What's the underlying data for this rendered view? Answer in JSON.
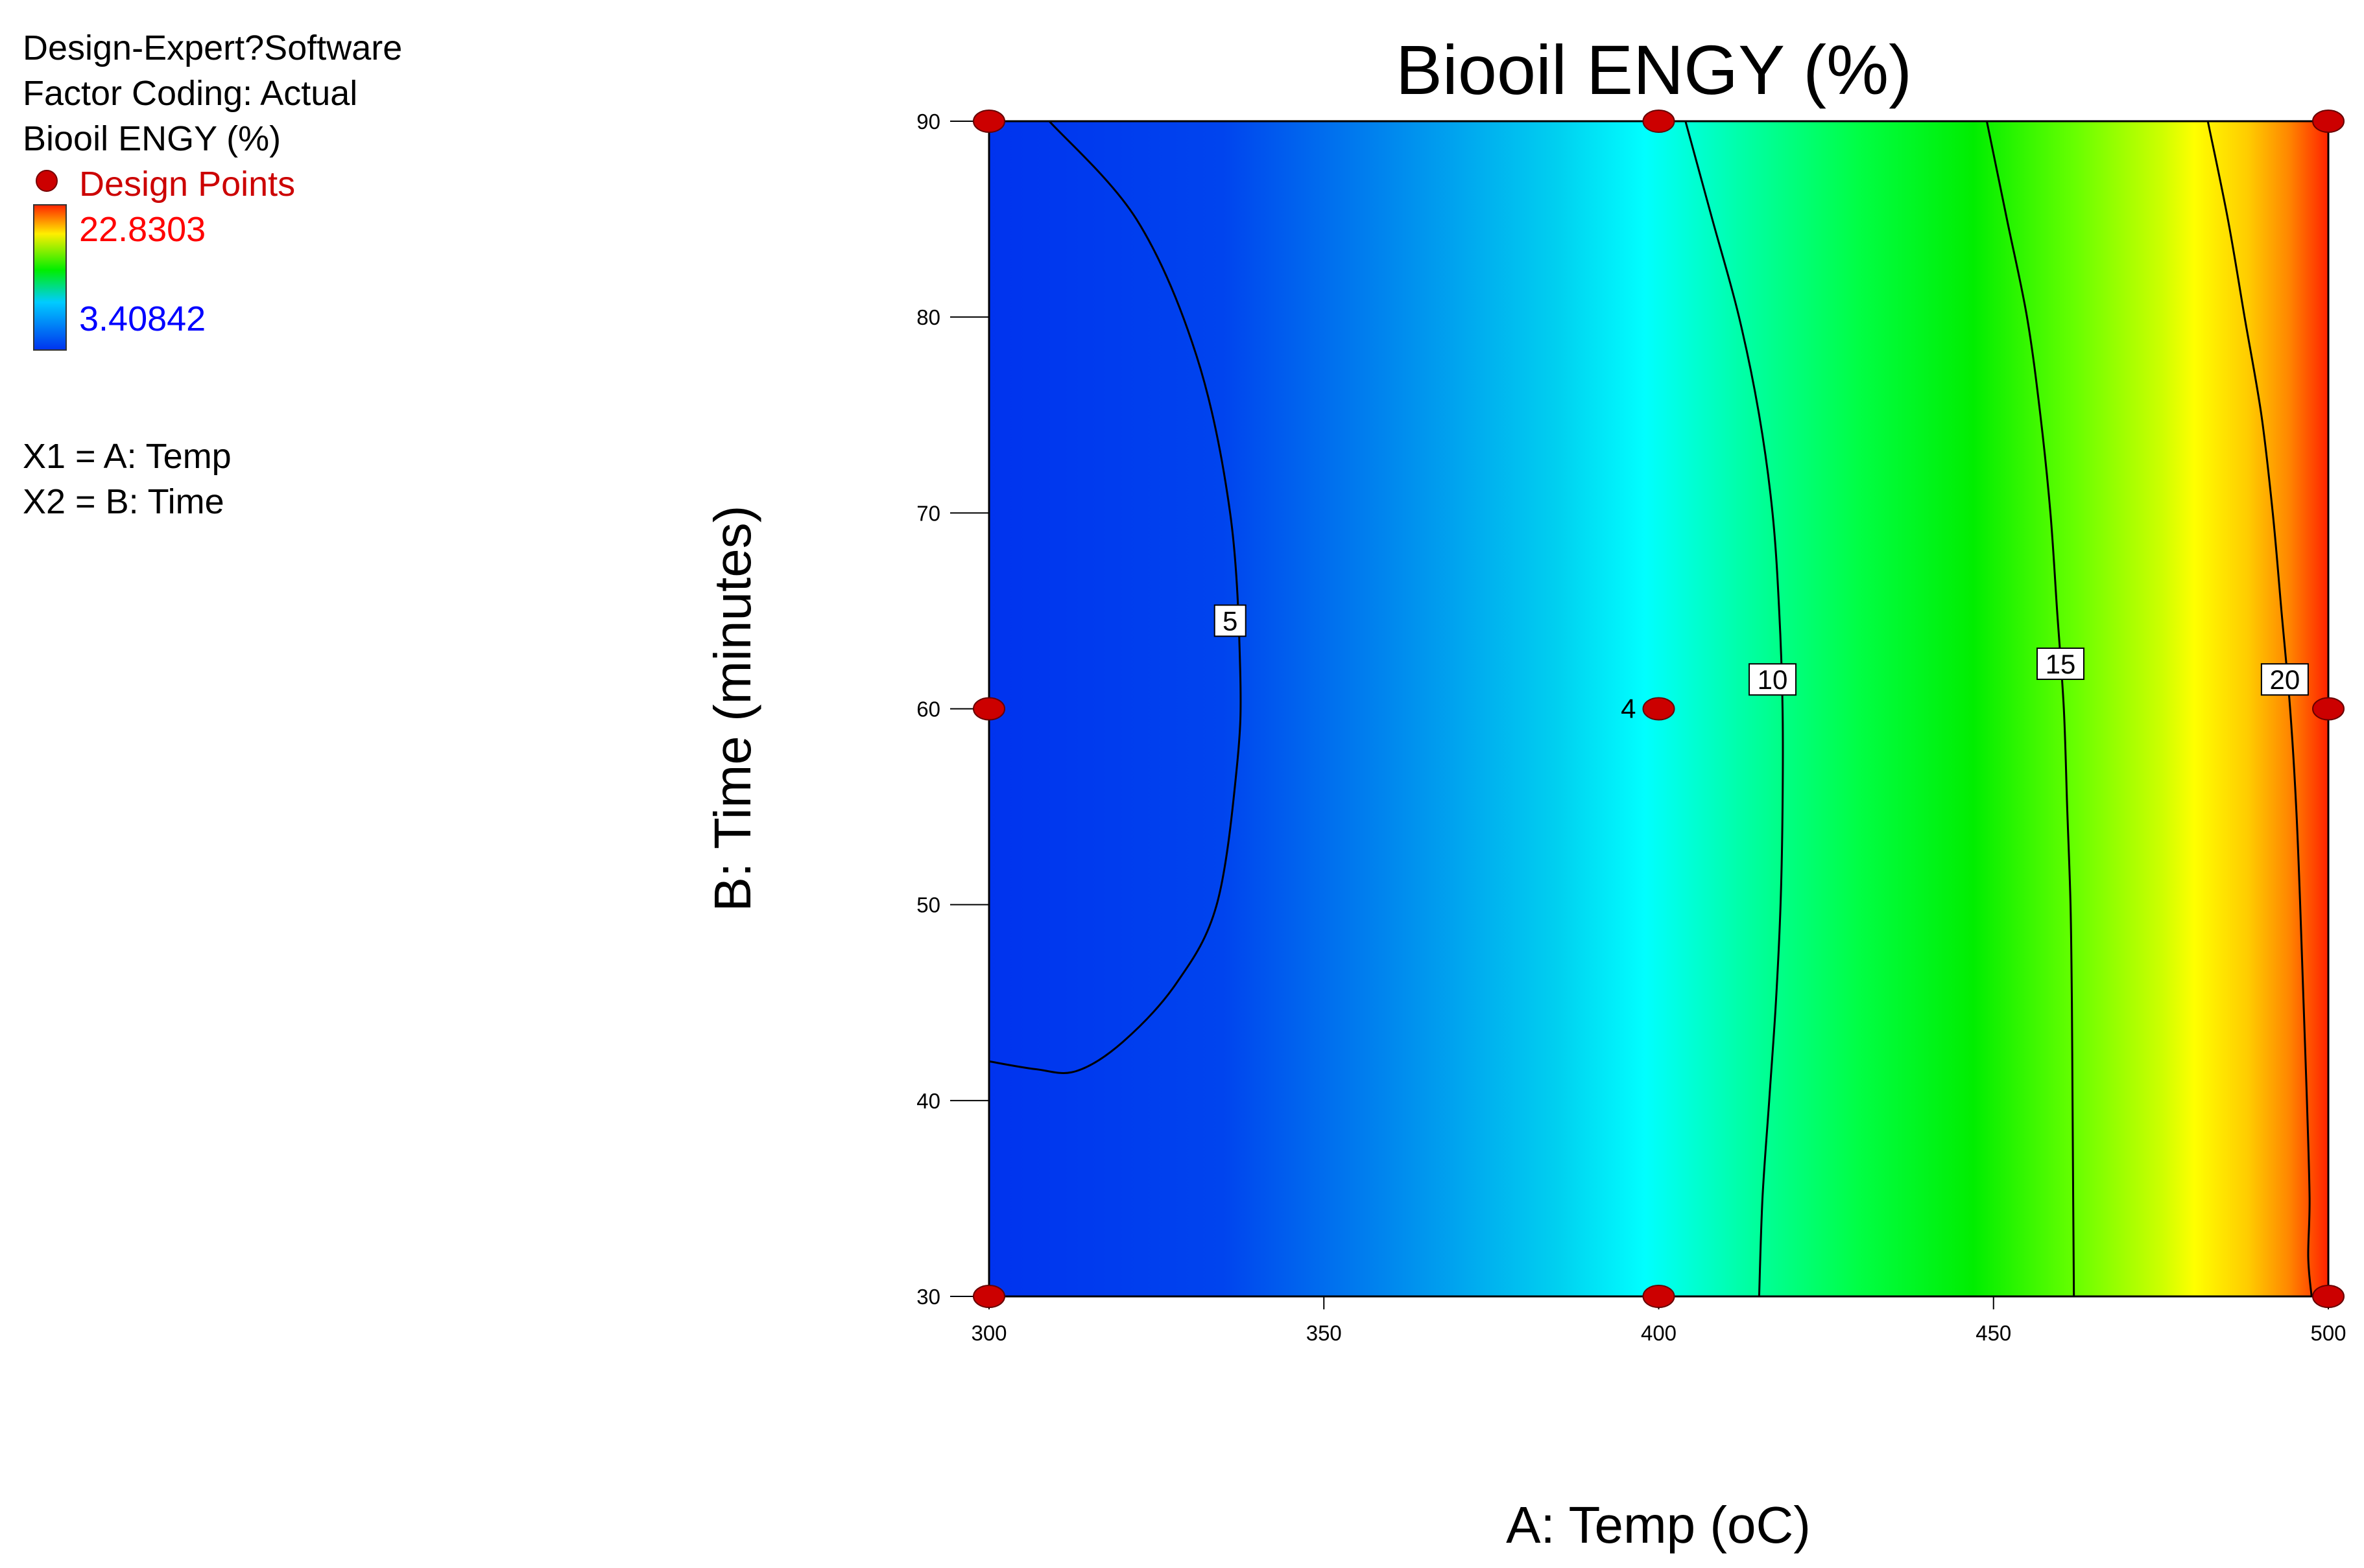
{
  "info": {
    "software": "Design-Expert?Software",
    "coding": "Factor Coding: Actual",
    "response": "Biooil ENGY (%)",
    "design_points_label": "Design Points",
    "range_max": "22.8303",
    "range_min": "3.40842",
    "x1_def": "X1 = A: Temp",
    "x2_def": "X2 = B: Time"
  },
  "colors": {
    "design_point": "#cc0000",
    "max_label": "#ff0000",
    "min_label": "#0000ff",
    "design_points_text": "#cc0000"
  },
  "chart_data": {
    "type": "contour",
    "title": "Biooil ENGY (%)",
    "xlabel": "A: Temp (oC)",
    "ylabel": "B: Time (minutes)",
    "xlim": [
      300,
      500
    ],
    "ylim": [
      30,
      90
    ],
    "x_ticks": [
      300,
      350,
      400,
      450,
      500
    ],
    "y_ticks": [
      30,
      40,
      50,
      60,
      70,
      80,
      90
    ],
    "z_range": [
      3.40842,
      22.8303
    ],
    "color_stops": [
      {
        "x": 300,
        "color": "#0033ee"
      },
      {
        "x": 335,
        "color": "#0044ee"
      },
      {
        "x": 360,
        "color": "#0088ee"
      },
      {
        "x": 385,
        "color": "#00d0f0"
      },
      {
        "x": 398,
        "color": "#00ffff"
      },
      {
        "x": 412,
        "color": "#00ffaa"
      },
      {
        "x": 430,
        "color": "#00ff44"
      },
      {
        "x": 447,
        "color": "#00ee00"
      },
      {
        "x": 462,
        "color": "#66ff00"
      },
      {
        "x": 475,
        "color": "#ccff00"
      },
      {
        "x": 480,
        "color": "#ffff00"
      },
      {
        "x": 488,
        "color": "#ffcc00"
      },
      {
        "x": 494,
        "color": "#ff8800"
      },
      {
        "x": 500,
        "color": "#ff2200"
      }
    ],
    "contours": [
      {
        "level": "5",
        "points": [
          [
            309,
            90
          ],
          [
            322,
            85
          ],
          [
            331,
            78
          ],
          [
            336,
            70
          ],
          [
            337.5,
            62
          ],
          [
            337,
            57
          ],
          [
            334,
            50
          ],
          [
            328,
            46
          ],
          [
            320,
            43
          ],
          [
            313,
            41.5
          ],
          [
            307,
            41.6
          ],
          [
            300,
            42
          ]
        ],
        "label_at": [
          336,
          64.5
        ]
      },
      {
        "level": "10",
        "points": [
          [
            404,
            90
          ],
          [
            408,
            85
          ],
          [
            412,
            80
          ],
          [
            415,
            75
          ],
          [
            417,
            70
          ],
          [
            418,
            65
          ],
          [
            418.5,
            60
          ],
          [
            418.5,
            55
          ],
          [
            418.2,
            50
          ],
          [
            417.5,
            45
          ],
          [
            416.5,
            40
          ],
          [
            415.5,
            35
          ],
          [
            415,
            30
          ]
        ],
        "label_at": [
          417,
          61.5
        ]
      },
      {
        "level": "15",
        "points": [
          [
            449,
            90
          ],
          [
            452,
            85
          ],
          [
            455,
            80
          ],
          [
            457,
            75
          ],
          [
            458.5,
            70
          ],
          [
            459.5,
            65
          ],
          [
            460.5,
            60
          ],
          [
            461,
            55
          ],
          [
            461.5,
            50
          ],
          [
            461.7,
            45
          ],
          [
            461.8,
            40
          ],
          [
            461.9,
            35
          ],
          [
            462,
            30
          ]
        ],
        "label_at": [
          460,
          62.3
        ]
      },
      {
        "level": "20",
        "points": [
          [
            482,
            90
          ],
          [
            485,
            85
          ],
          [
            487.5,
            80
          ],
          [
            490,
            75
          ],
          [
            491.7,
            70
          ],
          [
            493,
            65
          ],
          [
            494.3,
            60
          ],
          [
            495.2,
            55
          ],
          [
            495.8,
            50
          ],
          [
            496.3,
            45
          ],
          [
            496.8,
            40
          ],
          [
            497.2,
            35
          ],
          [
            497,
            32
          ],
          [
            497.5,
            30
          ]
        ],
        "label_at": [
          493.5,
          61.5
        ]
      }
    ],
    "design_points": [
      {
        "x": 300,
        "y": 90,
        "label": ""
      },
      {
        "x": 400,
        "y": 90,
        "label": ""
      },
      {
        "x": 500,
        "y": 90,
        "label": ""
      },
      {
        "x": 300,
        "y": 60,
        "label": ""
      },
      {
        "x": 400,
        "y": 60,
        "label": "4"
      },
      {
        "x": 500,
        "y": 60,
        "label": ""
      },
      {
        "x": 300,
        "y": 30,
        "label": ""
      },
      {
        "x": 400,
        "y": 30,
        "label": ""
      },
      {
        "x": 500,
        "y": 30,
        "label": ""
      }
    ]
  }
}
